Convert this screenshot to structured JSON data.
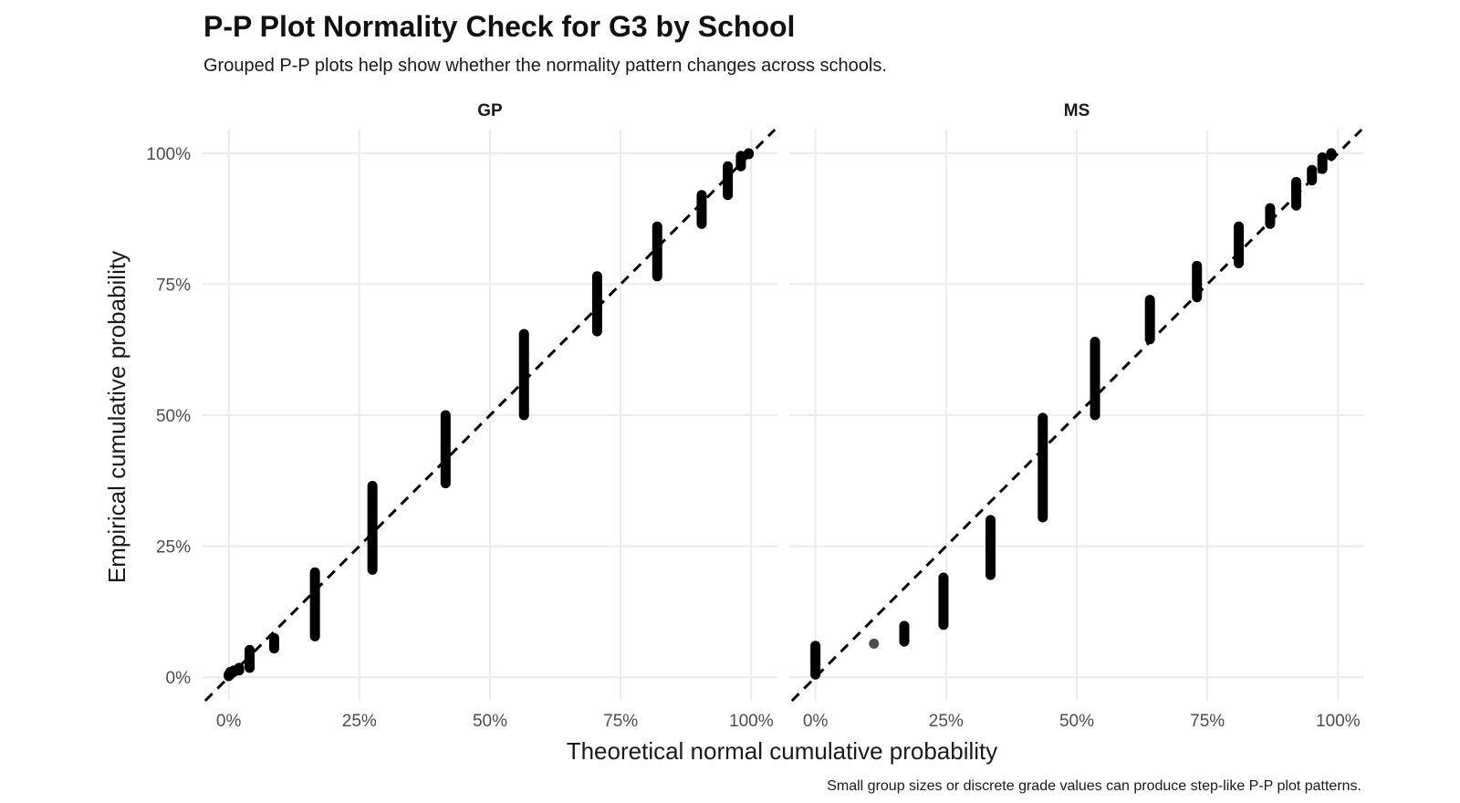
{
  "chart_data": {
    "type": "scatter",
    "title": "P-P Plot Normality Check for G3 by School",
    "subtitle": "Grouped P-P plots help show whether the normality pattern changes across schools.",
    "xlabel": "Theoretical normal cumulative probability",
    "ylabel": "Empirical cumulative probability",
    "caption": "Small group sizes or discrete grade values can produce step-like P-P plot patterns.",
    "xlim": [
      -0.05,
      1.05
    ],
    "ylim": [
      -0.045,
      1.045
    ],
    "x_ticks": [
      0,
      0.25,
      0.5,
      0.75,
      1
    ],
    "x_tick_labels": [
      "0%",
      "25%",
      "50%",
      "75%",
      "100%"
    ],
    "y_ticks": [
      0,
      0.25,
      0.5,
      0.75,
      1
    ],
    "y_tick_labels": [
      "0%",
      "25%",
      "50%",
      "75%",
      "100%"
    ],
    "reference_line": "y = x (dashed)",
    "grid": true,
    "facets": [
      {
        "name": "GP",
        "steps": [
          {
            "x": 0.0,
            "y_min": 0.002,
            "y_max": 0.005
          },
          {
            "x": 0.003,
            "y_min": 0.005,
            "y_max": 0.01
          },
          {
            "x": 0.01,
            "y_min": 0.01,
            "y_max": 0.013
          },
          {
            "x": 0.02,
            "y_min": 0.013,
            "y_max": 0.018
          },
          {
            "x": 0.04,
            "y_min": 0.018,
            "y_max": 0.052
          },
          {
            "x": 0.087,
            "y_min": 0.055,
            "y_max": 0.075
          },
          {
            "x": 0.165,
            "y_min": 0.078,
            "y_max": 0.2
          },
          {
            "x": 0.275,
            "y_min": 0.205,
            "y_max": 0.365
          },
          {
            "x": 0.415,
            "y_min": 0.37,
            "y_max": 0.5
          },
          {
            "x": 0.565,
            "y_min": 0.5,
            "y_max": 0.655
          },
          {
            "x": 0.705,
            "y_min": 0.66,
            "y_max": 0.765
          },
          {
            "x": 0.82,
            "y_min": 0.765,
            "y_max": 0.86
          },
          {
            "x": 0.905,
            "y_min": 0.865,
            "y_max": 0.92
          },
          {
            "x": 0.955,
            "y_min": 0.92,
            "y_max": 0.975
          },
          {
            "x": 0.98,
            "y_min": 0.975,
            "y_max": 0.995
          },
          {
            "x": 0.995,
            "y_min": 0.998,
            "y_max": 1.0
          }
        ]
      },
      {
        "name": "MS",
        "steps": [
          {
            "x": 0.0,
            "y_min": 0.005,
            "y_max": 0.06
          },
          {
            "x": 0.112,
            "y_min": 0.064,
            "y_max": 0.064
          },
          {
            "x": 0.17,
            "y_min": 0.068,
            "y_max": 0.098
          },
          {
            "x": 0.245,
            "y_min": 0.1,
            "y_max": 0.19
          },
          {
            "x": 0.335,
            "y_min": 0.195,
            "y_max": 0.3
          },
          {
            "x": 0.435,
            "y_min": 0.305,
            "y_max": 0.495
          },
          {
            "x": 0.535,
            "y_min": 0.5,
            "y_max": 0.64
          },
          {
            "x": 0.64,
            "y_min": 0.645,
            "y_max": 0.72
          },
          {
            "x": 0.73,
            "y_min": 0.725,
            "y_max": 0.785
          },
          {
            "x": 0.81,
            "y_min": 0.79,
            "y_max": 0.86
          },
          {
            "x": 0.87,
            "y_min": 0.865,
            "y_max": 0.895
          },
          {
            "x": 0.92,
            "y_min": 0.9,
            "y_max": 0.945
          },
          {
            "x": 0.95,
            "y_min": 0.948,
            "y_max": 0.968
          },
          {
            "x": 0.97,
            "y_min": 0.97,
            "y_max": 0.992
          },
          {
            "x": 0.987,
            "y_min": 0.995,
            "y_max": 1.0
          }
        ]
      }
    ]
  }
}
